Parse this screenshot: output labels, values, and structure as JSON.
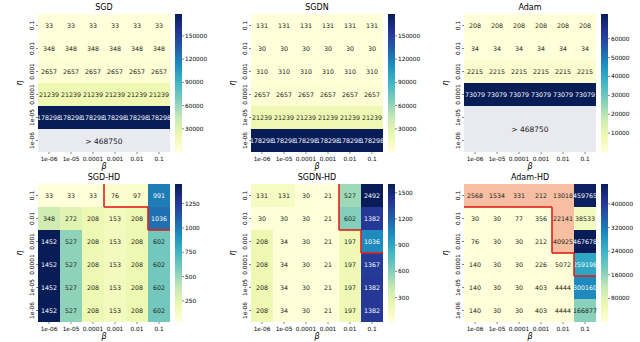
{
  "chart_data": [
    {
      "type": "heatmap",
      "title": "SGD",
      "x_label": "β",
      "y_label": "η",
      "x": [
        "1e-06",
        "1e-05",
        "0.0001",
        "0.001",
        "0.01",
        "0.1"
      ],
      "y": [
        "0.1",
        "0.01",
        "0.001",
        "0.0001",
        "1e-05",
        "1e-06"
      ],
      "values": [
        [
          33,
          33,
          33,
          33,
          33,
          33
        ],
        [
          348,
          348,
          348,
          348,
          348,
          348
        ],
        [
          2657,
          2657,
          2657,
          2657,
          2657,
          2657
        ],
        [
          21239,
          21239,
          21239,
          21239,
          21239,
          21239
        ],
        [
          178298,
          178298,
          178298,
          178298,
          178298,
          178298
        ],
        [
          null,
          null,
          null,
          null,
          null,
          null
        ]
      ],
      "null_label": "> 468750",
      "data_labels": true,
      "colorbar": {
        "range": [
          33,
          178298
        ],
        "ticks": [
          30000,
          60000,
          90000,
          120000,
          150000
        ]
      }
    },
    {
      "type": "heatmap",
      "title": "SGDN",
      "x_label": "β",
      "y_label": "η",
      "x": [
        "1e-06",
        "1e-05",
        "0.0001",
        "0.001",
        "0.01",
        "0.1"
      ],
      "y": [
        "0.1",
        "0.01",
        "0.001",
        "0.0001",
        "1e-05",
        "1e-06"
      ],
      "values": [
        [
          131,
          131,
          131,
          131,
          131,
          131
        ],
        [
          30,
          30,
          30,
          30,
          30,
          30
        ],
        [
          310,
          310,
          310,
          310,
          310,
          310
        ],
        [
          2657,
          2657,
          2657,
          2657,
          2657,
          2657
        ],
        [
          21239,
          21239,
          21239,
          21239,
          21239,
          21239
        ],
        [
          178298,
          178298,
          178298,
          178298,
          178298,
          178298
        ]
      ],
      "data_labels": true,
      "colorbar": {
        "range": [
          30,
          178298
        ],
        "ticks": [
          30000,
          60000,
          90000,
          120000,
          150000
        ]
      }
    },
    {
      "type": "heatmap",
      "title": "Adam",
      "x_label": "β",
      "y_label": "η",
      "x": [
        "1e-06",
        "1e-05",
        "0.0001",
        "0.001",
        "0.01",
        "0.1"
      ],
      "y": [
        "0.1",
        "0.01",
        "0.001",
        "0.0001",
        "1e-05",
        "1e-06"
      ],
      "values": [
        [
          208,
          208,
          208,
          208,
          208,
          208
        ],
        [
          34,
          34,
          34,
          34,
          34,
          34
        ],
        [
          2215,
          2215,
          2215,
          2215,
          2215,
          2215
        ],
        [
          73079,
          73079,
          73079,
          73079,
          73079,
          73079
        ],
        [
          null,
          null,
          null,
          null,
          null,
          null
        ],
        [
          null,
          null,
          null,
          null,
          null,
          null
        ]
      ],
      "null_label": "> 468750",
      "data_labels": true,
      "colorbar": {
        "range": [
          34,
          73079
        ],
        "ticks": [
          10000,
          20000,
          30000,
          40000,
          50000,
          60000
        ]
      }
    },
    {
      "type": "heatmap",
      "title": "SGD-HD",
      "x_label": "β",
      "y_label": "η",
      "x": [
        "1e-06",
        "1e-05",
        "0.0001",
        "0.001",
        "0.01",
        "0.1"
      ],
      "y": [
        "0.1",
        "0.01",
        "0.001",
        "0.0001",
        "1e-05",
        "1e-06"
      ],
      "values": [
        [
          33,
          33,
          33,
          76,
          97,
          991
        ],
        [
          348,
          272,
          208,
          153,
          208,
          1036
        ],
        [
          1452,
          527,
          208,
          153,
          208,
          602
        ],
        [
          1452,
          527,
          208,
          153,
          208,
          602
        ],
        [
          1452,
          527,
          208,
          153,
          208,
          602
        ],
        [
          1452,
          527,
          208,
          153,
          208,
          602
        ]
      ],
      "data_labels": true,
      "highlight_cells": [
        [
          0,
          3
        ],
        [
          0,
          4
        ],
        [
          0,
          5
        ],
        [
          1,
          5
        ]
      ],
      "colorbar": {
        "range": [
          33,
          1452
        ],
        "ticks": [
          250,
          500,
          750,
          1000,
          1250
        ]
      }
    },
    {
      "type": "heatmap",
      "title": "SGDN-HD",
      "x_label": "β",
      "y_label": "η",
      "x": [
        "1e-06",
        "1e-05",
        "0.0001",
        "0.001",
        "0.01",
        "0.1"
      ],
      "y": [
        "0.1",
        "0.01",
        "0.001",
        "0.0001",
        "1e-05",
        "1e-06"
      ],
      "values": [
        [
          131,
          131,
          30,
          21,
          527,
          2492
        ],
        [
          30,
          30,
          30,
          21,
          602,
          1382
        ],
        [
          208,
          34,
          30,
          21,
          197,
          1036
        ],
        [
          208,
          34,
          30,
          21,
          197,
          1367
        ],
        [
          208,
          34,
          30,
          21,
          197,
          1382
        ],
        [
          208,
          34,
          30,
          21,
          197,
          1382
        ]
      ],
      "data_labels": true,
      "highlight_cells": [
        [
          0,
          4
        ],
        [
          0,
          5
        ],
        [
          1,
          4
        ],
        [
          1,
          5
        ],
        [
          2,
          5
        ]
      ],
      "colorbar": {
        "range": [
          21,
          1600
        ],
        "ticks": [
          300,
          600,
          900,
          1200,
          1500
        ]
      }
    },
    {
      "type": "heatmap",
      "title": "Adam-HD",
      "x_label": "β",
      "y_label": "η",
      "x": [
        "1e-06",
        "1e-05",
        "0.0001",
        "0.001",
        "0.01",
        "0.1"
      ],
      "y": [
        "0.1",
        "0.01",
        "0.001",
        "0.0001",
        "1e-05",
        "1e-06"
      ],
      "values": [
        [
          2568,
          1534,
          331,
          212,
          13018,
          459765
        ],
        [
          30,
          30,
          77,
          356,
          22141,
          38533
        ],
        [
          76,
          30,
          30,
          212,
          40925,
          467678
        ],
        [
          140,
          30,
          30,
          226,
          5072,
          259198
        ],
        [
          140,
          30,
          30,
          403,
          4444,
          300160
        ],
        [
          140,
          30,
          30,
          403,
          4444,
          166877
        ]
      ],
      "data_labels": true,
      "highlight_cells": [
        [
          0,
          0
        ],
        [
          0,
          1
        ],
        [
          0,
          2
        ],
        [
          0,
          3
        ],
        [
          0,
          4
        ],
        [
          0,
          5
        ],
        [
          1,
          4
        ],
        [
          1,
          5
        ],
        [
          2,
          4
        ],
        [
          2,
          5
        ],
        [
          3,
          5
        ]
      ],
      "shaded_cells": [
        [
          0,
          0
        ],
        [
          0,
          1
        ],
        [
          0,
          2
        ],
        [
          0,
          3
        ],
        [
          0,
          4
        ],
        [
          1,
          4
        ],
        [
          2,
          4
        ]
      ],
      "colorbar": {
        "range": [
          30,
          467678
        ],
        "ticks": [
          80000,
          160000,
          240000,
          320000,
          400000
        ]
      }
    }
  ]
}
